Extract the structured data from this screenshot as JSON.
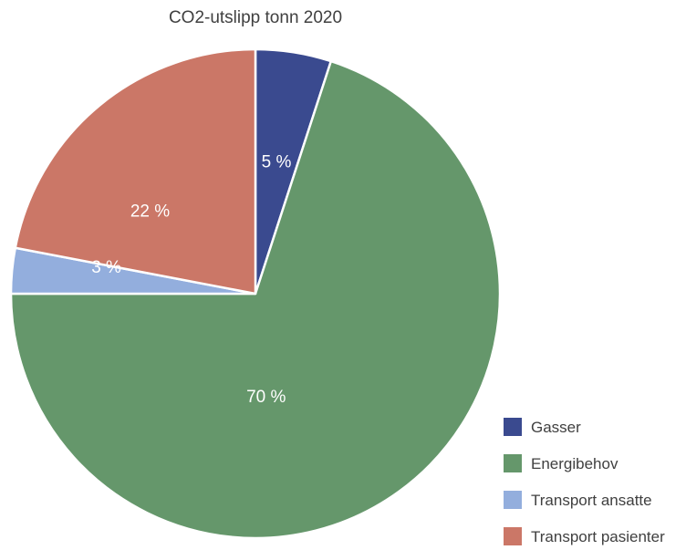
{
  "chart_data": {
    "type": "pie",
    "title": "CO2-utslipp tonn 2020",
    "legend_position": "bottom-right",
    "start_angle_deg": 0,
    "direction": "clockwise",
    "slices": [
      {
        "label": "Gasser",
        "value": 5,
        "display": "5 %",
        "color": "#3a4a8f"
      },
      {
        "label": "Energibehov",
        "value": 70,
        "display": "70 %",
        "color": "#65976b"
      },
      {
        "label": "Transport ansatte",
        "value": 3,
        "display": "3 %",
        "color": "#93aedd"
      },
      {
        "label": "Transport pasienter",
        "value": 22,
        "display": "22 %",
        "color": "#cb7767"
      }
    ]
  }
}
